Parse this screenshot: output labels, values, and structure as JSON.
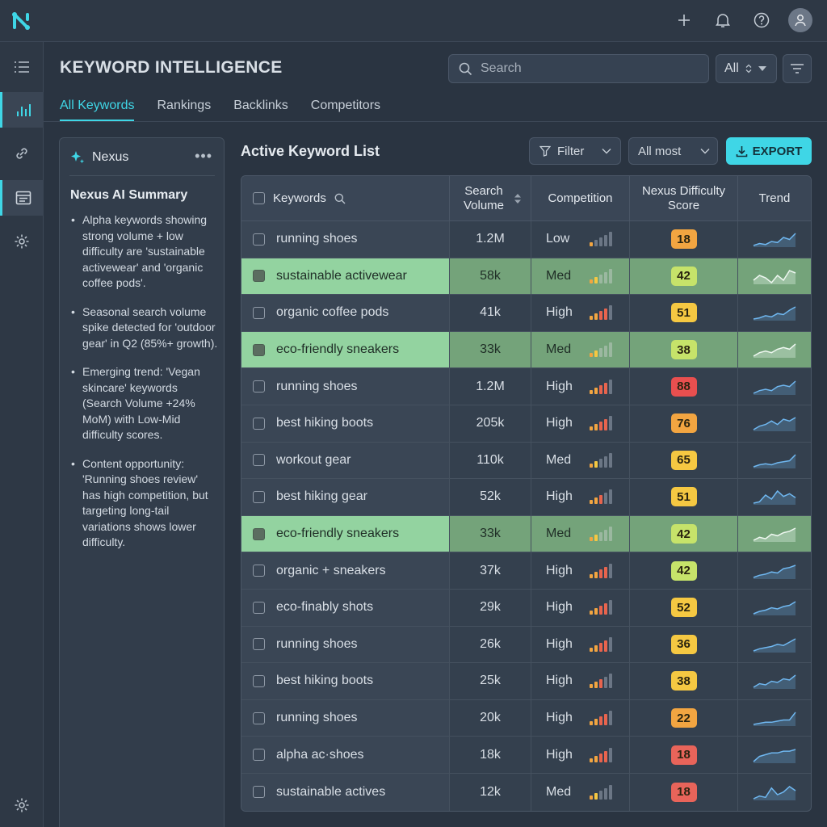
{
  "colors": {
    "accent": "#3fd6e6",
    "low": "#e84f4f",
    "mid": "#f2a541",
    "yellow": "#f5c842",
    "lime": "#c6e36a",
    "green_row": "#93d3a0",
    "spark": "#6fb7f0"
  },
  "header": {
    "title": "KEYWORD INTELLIGENCE",
    "search_placeholder": "Search",
    "select_value": "All"
  },
  "tabs": [
    "All Keywords",
    "Rankings",
    "Backlinks",
    "Competitors"
  ],
  "ai_panel": {
    "name": "Nexus",
    "more": "•••",
    "title": "Nexus AI Summary",
    "points": [
      "Alpha keywords showing strong volume + low difficulty are 'sustainable activewear' and 'organic coffee pods'.",
      "Seasonal search volume spike detected for 'outdoor gear' in Q2 (85%+ growth).",
      "Emerging trend: 'Vegan skincare' keywords (Search Volume +24% MoM) with Low-Mid difficulty scores.",
      "Content opportunity: 'Running shoes review' has high competition, but targeting long-tail variations shows lower difficulty."
    ]
  },
  "list": {
    "title": "Active Keyword List",
    "filter_label": "Filter",
    "sort_label": "All most",
    "export_label": "EXPORT",
    "columns": {
      "keywords": "Keywords",
      "volume": "Search Volume",
      "competition": "Competition",
      "difficulty": "Nexus Difficulty Score",
      "trend": "Trend"
    },
    "rows": [
      {
        "keyword": "running shoes",
        "volume": "1.2M",
        "competition": "Low",
        "comp_level": 1,
        "score": "18",
        "score_color": "#f2a541",
        "highlight": false,
        "trend": [
          6,
          8,
          7,
          10,
          9,
          14,
          12,
          18
        ]
      },
      {
        "keyword": "sustainable activewear",
        "volume": "58k",
        "competition": "Med",
        "comp_level": 2,
        "score": "42",
        "score_color": "#c6e36a",
        "highlight": true,
        "trend": [
          10,
          12,
          11,
          9,
          12,
          10,
          14,
          13
        ]
      },
      {
        "keyword": "organic coffee pods",
        "volume": "41k",
        "competition": "High",
        "comp_level": 4,
        "score": "51",
        "score_color": "#f5c842",
        "highlight": false,
        "trend": [
          6,
          7,
          9,
          8,
          11,
          10,
          14,
          17
        ]
      },
      {
        "keyword": "eco-friendly sneakers",
        "volume": "33k",
        "competition": "Med",
        "comp_level": 2,
        "score": "38",
        "score_color": "#c6e36a",
        "highlight": true,
        "trend": [
          8,
          10,
          11,
          10,
          12,
          13,
          12,
          15
        ]
      },
      {
        "keyword": "running shoes",
        "volume": "1.2M",
        "competition": "High",
        "comp_level": 4,
        "score": "88",
        "score_color": "#e84f4f",
        "highlight": false,
        "trend": [
          6,
          8,
          9,
          8,
          11,
          12,
          11,
          15
        ]
      },
      {
        "keyword": "best hiking boots",
        "volume": "205k",
        "competition": "High",
        "comp_level": 4,
        "score": "76",
        "score_color": "#f2a541",
        "highlight": false,
        "trend": [
          7,
          9,
          10,
          12,
          10,
          13,
          12,
          14
        ]
      },
      {
        "keyword": "workout gear",
        "volume": "110k",
        "competition": "Med",
        "comp_level": 2,
        "score": "65",
        "score_color": "#f5c842",
        "highlight": false,
        "trend": [
          6,
          8,
          9,
          8,
          10,
          11,
          12,
          18
        ]
      },
      {
        "keyword": "best hiking gear",
        "volume": "52k",
        "competition": "High",
        "comp_level": 3,
        "score": "51",
        "score_color": "#f5c842",
        "highlight": false,
        "trend": [
          6,
          7,
          12,
          9,
          15,
          11,
          13,
          10
        ]
      },
      {
        "keyword": "eco-friendly sneakers",
        "volume": "33k",
        "competition": "Med",
        "comp_level": 2,
        "score": "42",
        "score_color": "#c6e36a",
        "highlight": true,
        "trend": [
          7,
          9,
          8,
          11,
          10,
          12,
          13,
          15
        ]
      },
      {
        "keyword": "organic + sneakers",
        "volume": "37k",
        "competition": "High",
        "comp_level": 4,
        "score": "42",
        "score_color": "#c6e36a",
        "highlight": false,
        "trend": [
          5,
          7,
          8,
          10,
          9,
          13,
          14,
          16
        ]
      },
      {
        "keyword": "eco-finably shots",
        "volume": "29k",
        "competition": "High",
        "comp_level": 4,
        "score": "52",
        "score_color": "#f5c842",
        "highlight": false,
        "trend": [
          6,
          8,
          9,
          11,
          10,
          12,
          13,
          16
        ]
      },
      {
        "keyword": "running shoes",
        "volume": "26k",
        "competition": "High",
        "comp_level": 4,
        "score": "36",
        "score_color": "#f5c842",
        "highlight": false,
        "trend": [
          6,
          8,
          9,
          10,
          12,
          11,
          14,
          17
        ]
      },
      {
        "keyword": "best hiking boots",
        "volume": "25k",
        "competition": "High",
        "comp_level": 3,
        "score": "38",
        "score_color": "#f5c842",
        "highlight": false,
        "trend": [
          6,
          9,
          8,
          11,
          10,
          13,
          12,
          16
        ]
      },
      {
        "keyword": "running shoes",
        "volume": "20k",
        "competition": "High",
        "comp_level": 4,
        "score": "22",
        "score_color": "#f2a541",
        "highlight": false,
        "trend": [
          6,
          7,
          8,
          8,
          9,
          10,
          10,
          17
        ]
      },
      {
        "keyword": "alpha ac·shoes",
        "volume": "18k",
        "competition": "High",
        "comp_level": 4,
        "score": "18",
        "score_color": "#e8645a",
        "highlight": false,
        "trend": [
          7,
          10,
          11,
          12,
          12,
          13,
          13,
          14
        ]
      },
      {
        "keyword": "sustainable actives",
        "volume": "12k",
        "competition": "Med",
        "comp_level": 2,
        "score": "18",
        "score_color": "#e8645a",
        "highlight": false,
        "trend": [
          6,
          8,
          7,
          14,
          9,
          11,
          15,
          12
        ]
      }
    ]
  }
}
